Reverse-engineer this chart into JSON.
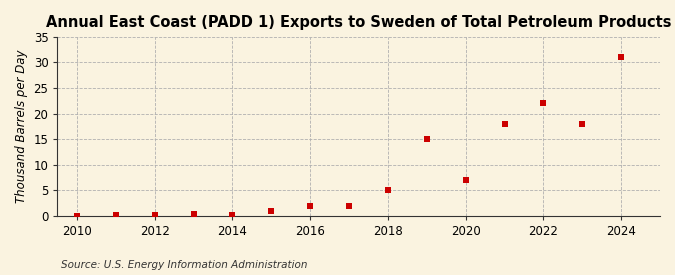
{
  "title": "Annual East Coast (PADD 1) Exports to Sweden of Total Petroleum Products",
  "ylabel": "Thousand Barrels per Day",
  "source": "Source: U.S. Energy Information Administration",
  "background_color": "#faf3e0",
  "plot_bg_color": "#faf3e0",
  "years": [
    2010,
    2011,
    2012,
    2013,
    2014,
    2015,
    2016,
    2017,
    2018,
    2019,
    2020,
    2021,
    2022,
    2023,
    2024
  ],
  "values": [
    0.0,
    0.2,
    0.2,
    0.3,
    0.1,
    1.0,
    2.0,
    2.0,
    5.0,
    15.0,
    7.0,
    18.0,
    22.0,
    18.0,
    31.0
  ],
  "marker_color": "#cc0000",
  "marker": "s",
  "marker_size": 5,
  "xlim": [
    2009.5,
    2025.0
  ],
  "ylim": [
    0,
    35
  ],
  "yticks": [
    0,
    5,
    10,
    15,
    20,
    25,
    30,
    35
  ],
  "xticks": [
    2010,
    2012,
    2014,
    2016,
    2018,
    2020,
    2022,
    2024
  ],
  "grid_color": "#b0b0b0",
  "title_fontsize": 10.5,
  "axis_label_fontsize": 8.5,
  "tick_fontsize": 8.5,
  "source_fontsize": 7.5
}
